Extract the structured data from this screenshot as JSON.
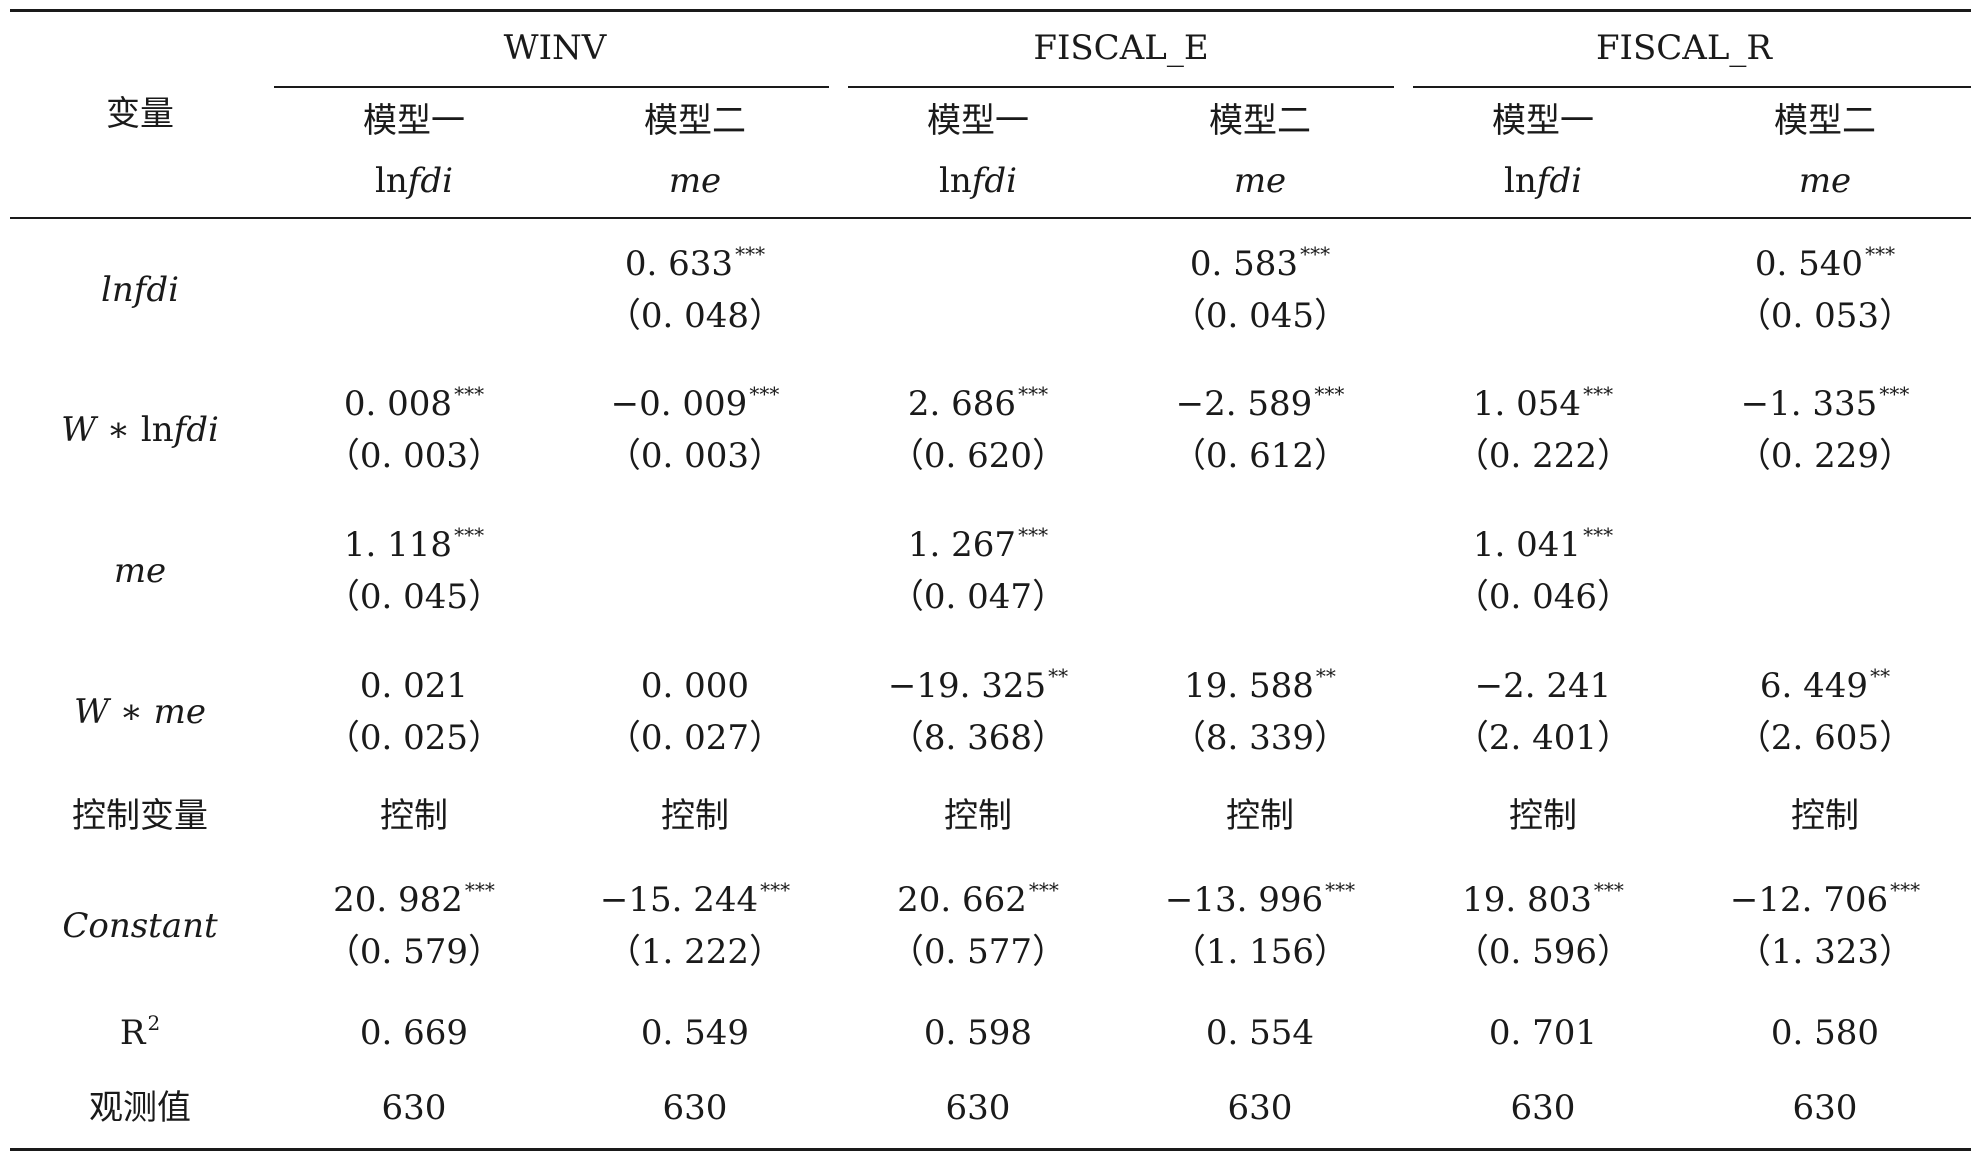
{
  "table": {
    "var_header": "变量",
    "groups": [
      "WINV",
      "FISCAL_E",
      "FISCAL_R"
    ],
    "model_labels": [
      "模型一",
      "模型二",
      "模型一",
      "模型二",
      "模型一",
      "模型二"
    ],
    "dep_vars": [
      {
        "pre": "ln",
        "it": "fdi"
      },
      {
        "pre": "",
        "it": "me"
      },
      {
        "pre": "ln",
        "it": "fdi"
      },
      {
        "pre": "",
        "it": "me"
      },
      {
        "pre": "ln",
        "it": "fdi"
      },
      {
        "pre": "",
        "it": "me"
      }
    ],
    "rows": [
      {
        "label_parts": [
          {
            "t": "lnfdi",
            "i": true
          }
        ],
        "cells": [
          null,
          {
            "v": "0. 633",
            "s": "***",
            "se": "（0. 048）"
          },
          null,
          {
            "v": "0. 583",
            "s": "***",
            "se": "（0. 045）"
          },
          null,
          {
            "v": "0. 540",
            "s": "***",
            "se": "（0. 053）"
          }
        ]
      },
      {
        "label_parts": [
          {
            "t": "W",
            "i": true
          },
          {
            "t": " ∗ ln",
            "i": false
          },
          {
            "t": "fdi",
            "i": true
          }
        ],
        "cells": [
          {
            "v": "0. 008",
            "s": "***",
            "se": "（0. 003）"
          },
          {
            "v": "−0. 009",
            "s": "***",
            "se": "（0. 003）"
          },
          {
            "v": "2. 686",
            "s": "***",
            "se": "（0. 620）"
          },
          {
            "v": "−2. 589",
            "s": "***",
            "se": "（0. 612）"
          },
          {
            "v": "1. 054",
            "s": "***",
            "se": "（0. 222）"
          },
          {
            "v": "−1. 335",
            "s": "***",
            "se": "（0. 229）"
          }
        ]
      },
      {
        "label_parts": [
          {
            "t": "me",
            "i": true
          }
        ],
        "cells": [
          {
            "v": "1. 118",
            "s": "***",
            "se": "（0. 045）"
          },
          null,
          {
            "v": "1. 267",
            "s": "***",
            "se": "（0. 047）"
          },
          null,
          {
            "v": "1. 041",
            "s": "***",
            "se": "（0. 046）"
          },
          null
        ]
      },
      {
        "label_parts": [
          {
            "t": "W",
            "i": true
          },
          {
            "t": " ∗ ",
            "i": false
          },
          {
            "t": "me",
            "i": true
          }
        ],
        "cells": [
          {
            "v": "0. 021",
            "s": "",
            "se": "（0. 025）"
          },
          {
            "v": "0. 000",
            "s": "",
            "se": "（0. 027）"
          },
          {
            "v": "−19. 325",
            "s": "**",
            "se": "（8. 368）"
          },
          {
            "v": "19. 588",
            "s": "**",
            "se": "（8. 339）"
          },
          {
            "v": "−2. 241",
            "s": "",
            "se": "（2. 401）"
          },
          {
            "v": "6. 449",
            "s": "**",
            "se": "（2. 605）"
          }
        ]
      },
      {
        "label_parts": [
          {
            "t": "控制变量",
            "i": false
          }
        ],
        "cells": [
          {
            "v": "控制"
          },
          {
            "v": "控制"
          },
          {
            "v": "控制"
          },
          {
            "v": "控制"
          },
          {
            "v": "控制"
          },
          {
            "v": "控制"
          }
        ]
      },
      {
        "label_parts": [
          {
            "t": "Constant",
            "i": true
          }
        ],
        "cells": [
          {
            "v": "20. 982",
            "s": "***",
            "se": "（0. 579）"
          },
          {
            "v": "−15. 244",
            "s": "***",
            "se": "（1. 222）"
          },
          {
            "v": "20. 662",
            "s": "***",
            "se": "（0. 577）"
          },
          {
            "v": "−13. 996",
            "s": "***",
            "se": "（1. 156）"
          },
          {
            "v": "19. 803",
            "s": "***",
            "se": "（0. 596）"
          },
          {
            "v": "−12. 706",
            "s": "***",
            "se": "（1. 323）"
          }
        ]
      },
      {
        "label_parts": [
          {
            "t": "R",
            "i": false
          },
          {
            "t": "2",
            "i": false,
            "sup": true
          }
        ],
        "cells": [
          {
            "v": "0. 669"
          },
          {
            "v": "0. 549"
          },
          {
            "v": "0. 598"
          },
          {
            "v": "0. 554"
          },
          {
            "v": "0. 701"
          },
          {
            "v": "0. 580"
          }
        ]
      },
      {
        "label_parts": [
          {
            "t": "观测值",
            "i": false
          }
        ],
        "cells": [
          {
            "v": "630"
          },
          {
            "v": "630"
          },
          {
            "v": "630"
          },
          {
            "v": "630"
          },
          {
            "v": "630"
          },
          {
            "v": "630"
          }
        ]
      }
    ]
  }
}
